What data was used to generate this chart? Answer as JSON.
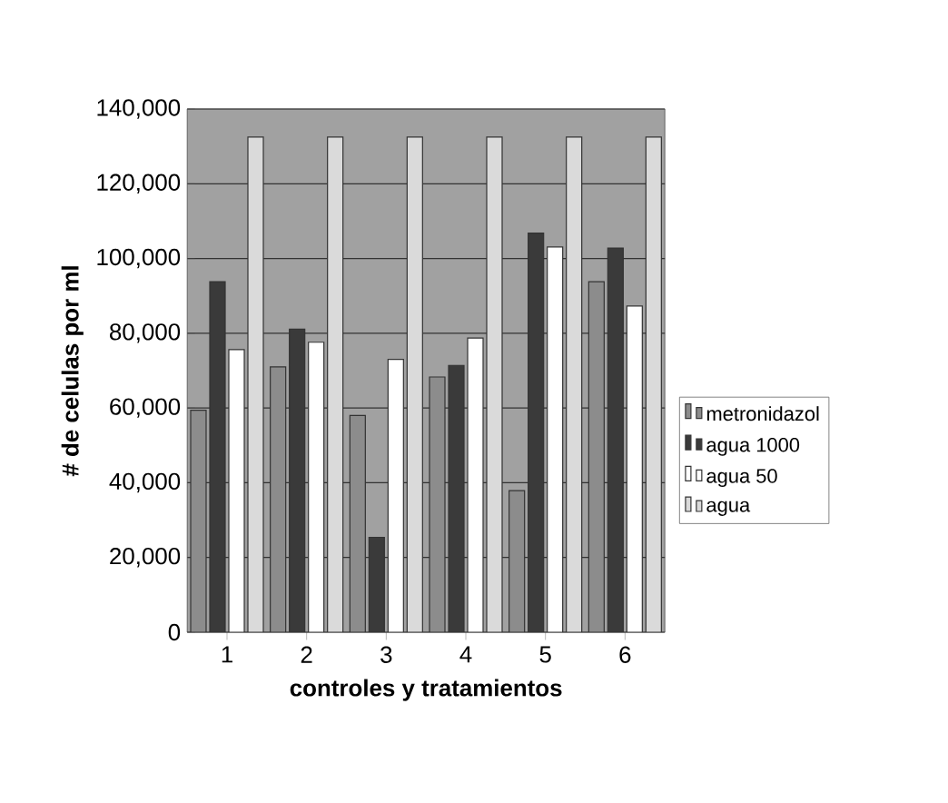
{
  "chart_data": {
    "type": "bar",
    "xlabel": "controles y tratamientos",
    "ylabel": "# de celulas por ml",
    "categories": [
      "1",
      "2",
      "3",
      "4",
      "5",
      "6"
    ],
    "series": [
      {
        "name": "metronidazol",
        "color": "#8c8c8c",
        "values": [
          59400,
          71000,
          58000,
          68300,
          37900,
          93800
        ]
      },
      {
        "name": "agua 1000",
        "color": "#3a3a3a",
        "values": [
          93800,
          81100,
          25400,
          71400,
          106800,
          102800
        ]
      },
      {
        "name": "agua 50",
        "color": "#ffffff",
        "values": [
          75600,
          77600,
          73000,
          78700,
          103100,
          87300
        ]
      },
      {
        "name": "agua",
        "color": "#dadada",
        "values": [
          132500,
          132500,
          132500,
          132500,
          132500,
          132500
        ]
      }
    ],
    "ylim": [
      0,
      140000
    ],
    "yticks": [
      0,
      {
        "value": 20000,
        "label": "20,000"
      },
      {
        "value": 40000,
        "label": "40,000"
      },
      {
        "value": 60000,
        "label": "60,000"
      },
      {
        "value": 80000,
        "label": "80,000"
      },
      {
        "value": 100000,
        "label": "100,000"
      },
      {
        "value": 120000,
        "label": "120,000"
      },
      {
        "value": 140000,
        "label": "140,000"
      }
    ],
    "grid": "y",
    "legend": "right"
  }
}
